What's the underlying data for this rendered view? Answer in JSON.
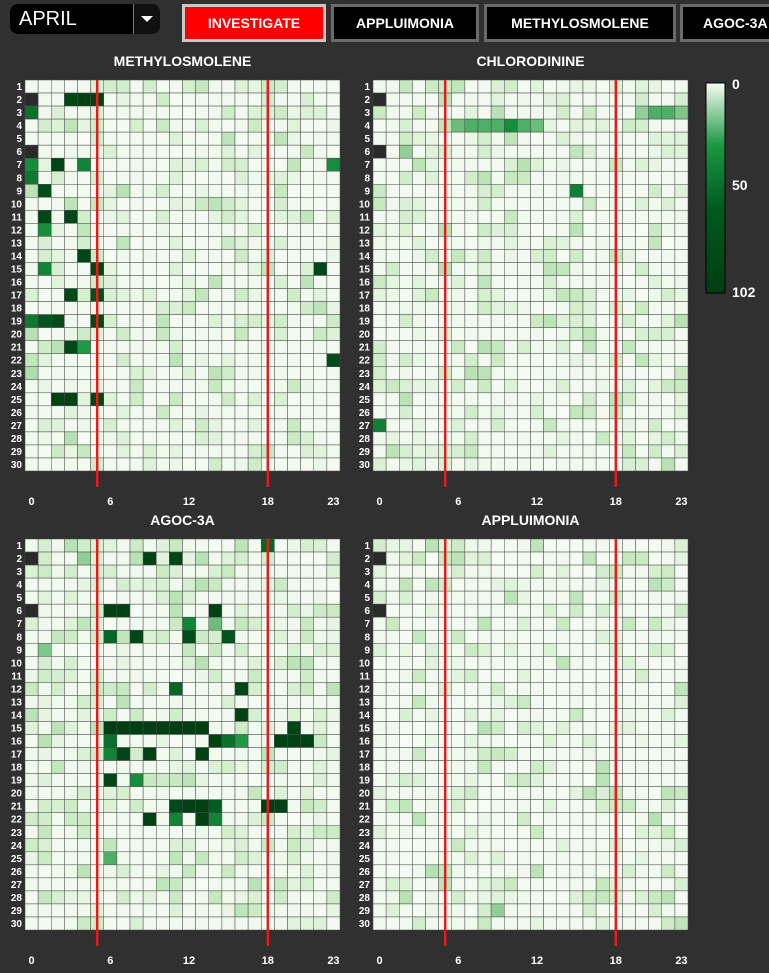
{
  "month_selector": {
    "value": "APRIL",
    "icon": "chevron-down-icon"
  },
  "tabs": [
    {
      "label": "INVESTIGATE",
      "active": true
    },
    {
      "label": "APPLUIMONIA",
      "active": false
    },
    {
      "label": "METHYLOSMOLENE",
      "active": false
    },
    {
      "label": "AGOC-3A",
      "active": false
    }
  ],
  "colors": {
    "background": "#303030",
    "active_tab": "#ff0000",
    "scale_low": "#f7fcf5",
    "scale_mid": "#1a9641",
    "scale_high": "#003d12",
    "marker_line": "#e81a1a",
    "missing": "#2a2a2a"
  },
  "chart_data": [
    {
      "type": "heatmap",
      "title": "METHYLOSMOLENE",
      "rows": [
        1,
        2,
        3,
        4,
        5,
        6,
        7,
        8,
        9,
        10,
        11,
        12,
        13,
        14,
        15,
        16,
        17,
        18,
        19,
        20,
        21,
        22,
        23,
        24,
        25,
        26,
        27,
        28,
        29,
        30
      ],
      "columns": [
        0,
        1,
        2,
        3,
        4,
        5,
        6,
        7,
        8,
        9,
        10,
        11,
        12,
        13,
        14,
        15,
        16,
        17,
        18,
        19,
        20,
        21,
        22,
        23
      ],
      "x_tick_labels": [
        "0",
        "6",
        "12",
        "18",
        "23"
      ],
      "vertical_markers": [
        5.5,
        18.5
      ],
      "missing": [
        [
          1,
          0
        ],
        [
          5,
          0
        ]
      ],
      "hot": [
        [
          1,
          3,
          90
        ],
        [
          1,
          4,
          95
        ],
        [
          1,
          5,
          95
        ],
        [
          2,
          0,
          50
        ],
        [
          6,
          0,
          35
        ],
        [
          6,
          2,
          90
        ],
        [
          6,
          4,
          40
        ],
        [
          6,
          23,
          35
        ],
        [
          7,
          0,
          45
        ],
        [
          8,
          1,
          80
        ],
        [
          10,
          1,
          90
        ],
        [
          10,
          3,
          90
        ],
        [
          11,
          1,
          35
        ],
        [
          13,
          4,
          90
        ],
        [
          14,
          1,
          40
        ],
        [
          14,
          5,
          90
        ],
        [
          14,
          22,
          90
        ],
        [
          16,
          3,
          85
        ],
        [
          16,
          5,
          75
        ],
        [
          18,
          0,
          45
        ],
        [
          18,
          1,
          70
        ],
        [
          18,
          2,
          80
        ],
        [
          18,
          5,
          85
        ],
        [
          20,
          3,
          85
        ],
        [
          20,
          4,
          30
        ],
        [
          21,
          23,
          80
        ],
        [
          22,
          0,
          15
        ],
        [
          24,
          2,
          95
        ],
        [
          24,
          3,
          95
        ],
        [
          24,
          5,
          90
        ]
      ],
      "light": 0.38
    },
    {
      "type": "heatmap",
      "title": "CHLORODININE",
      "rows": [
        1,
        2,
        3,
        4,
        5,
        6,
        7,
        8,
        9,
        10,
        11,
        12,
        13,
        14,
        15,
        16,
        17,
        18,
        19,
        20,
        21,
        22,
        23,
        24,
        25,
        26,
        27,
        28,
        29,
        30
      ],
      "columns": [
        0,
        1,
        2,
        3,
        4,
        5,
        6,
        7,
        8,
        9,
        10,
        11,
        12,
        13,
        14,
        15,
        16,
        17,
        18,
        19,
        20,
        21,
        22,
        23
      ],
      "x_tick_labels": [
        "0",
        "6",
        "12",
        "18",
        "23"
      ],
      "vertical_markers": [
        5.5,
        18.5
      ],
      "missing": [
        [
          1,
          0
        ],
        [
          5,
          0
        ]
      ],
      "hot": [
        [
          3,
          6,
          22
        ],
        [
          3,
          7,
          25
        ],
        [
          3,
          8,
          25
        ],
        [
          3,
          9,
          25
        ],
        [
          3,
          10,
          35
        ],
        [
          3,
          11,
          25
        ],
        [
          3,
          12,
          22
        ],
        [
          2,
          20,
          18
        ],
        [
          2,
          21,
          25
        ],
        [
          2,
          22,
          25
        ],
        [
          2,
          23,
          20
        ],
        [
          8,
          15,
          42
        ],
        [
          26,
          0,
          42
        ],
        [
          5,
          2,
          18
        ],
        [
          9,
          16,
          12
        ]
      ],
      "light": 0.42
    },
    {
      "type": "heatmap",
      "title": "AGOC-3A",
      "rows": [
        1,
        2,
        3,
        4,
        5,
        6,
        7,
        8,
        9,
        10,
        11,
        12,
        13,
        14,
        15,
        16,
        17,
        18,
        19,
        20,
        21,
        22,
        23,
        24,
        25,
        26,
        27,
        28,
        29,
        30
      ],
      "columns": [
        0,
        1,
        2,
        3,
        4,
        5,
        6,
        7,
        8,
        9,
        10,
        11,
        12,
        13,
        14,
        15,
        16,
        17,
        18,
        19,
        20,
        21,
        22,
        23
      ],
      "x_tick_labels": [
        "0",
        "6",
        "12",
        "18",
        "23"
      ],
      "vertical_markers": [
        5.5,
        18.5
      ],
      "missing": [
        [
          1,
          0
        ],
        [
          5,
          0
        ]
      ],
      "hot": [
        [
          0,
          18,
          55
        ],
        [
          1,
          9,
          95
        ],
        [
          1,
          11,
          90
        ],
        [
          1,
          4,
          18
        ],
        [
          5,
          6,
          95
        ],
        [
          5,
          7,
          95
        ],
        [
          5,
          14,
          95
        ],
        [
          6,
          12,
          40
        ],
        [
          6,
          14,
          22
        ],
        [
          7,
          6,
          55
        ],
        [
          7,
          8,
          90
        ],
        [
          7,
          12,
          80
        ],
        [
          7,
          15,
          70
        ],
        [
          11,
          11,
          55
        ],
        [
          11,
          16,
          90
        ],
        [
          13,
          16,
          95
        ],
        [
          14,
          6,
          100
        ],
        [
          14,
          7,
          100
        ],
        [
          14,
          8,
          100
        ],
        [
          14,
          9,
          100
        ],
        [
          14,
          10,
          100
        ],
        [
          14,
          11,
          100
        ],
        [
          14,
          12,
          100
        ],
        [
          14,
          13,
          100
        ],
        [
          14,
          20,
          90
        ],
        [
          15,
          6,
          50
        ],
        [
          15,
          14,
          95
        ],
        [
          15,
          15,
          50
        ],
        [
          15,
          16,
          30
        ],
        [
          15,
          19,
          95
        ],
        [
          15,
          20,
          95
        ],
        [
          15,
          21,
          95
        ],
        [
          16,
          6,
          40
        ],
        [
          16,
          7,
          90
        ],
        [
          16,
          9,
          95
        ],
        [
          16,
          13,
          95
        ],
        [
          18,
          6,
          90
        ],
        [
          18,
          8,
          35
        ],
        [
          20,
          11,
          85
        ],
        [
          20,
          12,
          100
        ],
        [
          20,
          13,
          100
        ],
        [
          20,
          14,
          60
        ],
        [
          20,
          18,
          100
        ],
        [
          20,
          19,
          95
        ],
        [
          21,
          11,
          40
        ],
        [
          21,
          9,
          95
        ],
        [
          21,
          13,
          95
        ],
        [
          21,
          14,
          40
        ],
        [
          24,
          6,
          25
        ],
        [
          8,
          1,
          20
        ]
      ],
      "light": 0.5
    },
    {
      "type": "heatmap",
      "title": "APPLUIMONIA",
      "rows": [
        1,
        2,
        3,
        4,
        5,
        6,
        7,
        8,
        9,
        10,
        11,
        12,
        13,
        14,
        15,
        16,
        17,
        18,
        19,
        20,
        21,
        22,
        23,
        24,
        25,
        26,
        27,
        28,
        29,
        30
      ],
      "columns": [
        0,
        1,
        2,
        3,
        4,
        5,
        6,
        7,
        8,
        9,
        10,
        11,
        12,
        13,
        14,
        15,
        16,
        17,
        18,
        19,
        20,
        21,
        22,
        23
      ],
      "x_tick_labels": [
        "0",
        "6",
        "12",
        "18",
        "23"
      ],
      "vertical_markers": [
        5.5,
        18.5
      ],
      "missing": [
        [
          1,
          0
        ],
        [
          5,
          0
        ]
      ],
      "hot": [
        [
          28,
          9,
          18
        ],
        [
          19,
          23,
          12
        ]
      ],
      "light": 0.3
    }
  ],
  "legend": {
    "labels": [
      "0",
      "50",
      "102"
    ],
    "min": 0,
    "max": 102
  }
}
